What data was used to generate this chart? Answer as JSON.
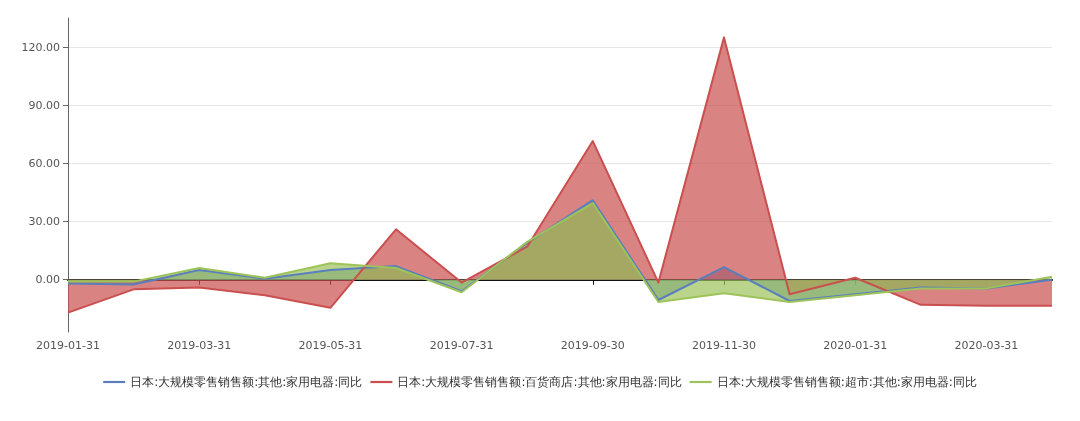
{
  "chart_data": {
    "type": "area",
    "categories": [
      "2019-01-31",
      null,
      "2019-03-31",
      null,
      "2019-05-31",
      null,
      "2019-07-31",
      null,
      "2019-09-30",
      null,
      "2019-11-30",
      null,
      "2020-01-31",
      null,
      "2020-03-31",
      null
    ],
    "series": [
      {
        "name": "日本:大规模零售销售额:其他:家用电器:同比",
        "color": "#5b7fbd",
        "values": [
          -2,
          -2.5,
          5,
          0.5,
          5,
          7,
          -6,
          19,
          41,
          -10.5,
          6.5,
          -11,
          -7.5,
          -4,
          -4.5,
          0
        ]
      },
      {
        "name": "日本:大规模零售销售额:百货商店:其他:家用电器:同比",
        "color": "#c9504f",
        "values": [
          -17,
          -5,
          -4,
          -8,
          -14.5,
          26,
          -1.5,
          17,
          71.5,
          -1.5,
          125,
          -7.5,
          1,
          -13,
          -13.5,
          -13.5
        ]
      },
      {
        "name": "日本:大规模零售销售额:超市:其他:家用电器:同比",
        "color": "#9dc35a",
        "values": [
          -1,
          -1,
          6,
          1,
          8.5,
          6,
          -6.5,
          19.5,
          39.5,
          -11.5,
          -7,
          -11.5,
          -8,
          -4.5,
          -4.5,
          1.5
        ]
      }
    ],
    "ylim": [
      -27,
      135
    ],
    "yticks": [
      {
        "value": 0,
        "label": "0.00"
      },
      {
        "value": 30,
        "label": "30.00"
      },
      {
        "value": 60,
        "label": "60.00"
      },
      {
        "value": 90,
        "label": "90.00"
      },
      {
        "value": 120,
        "label": "120.00"
      }
    ],
    "grid": "y",
    "legend": "bottom",
    "marker": "none"
  }
}
